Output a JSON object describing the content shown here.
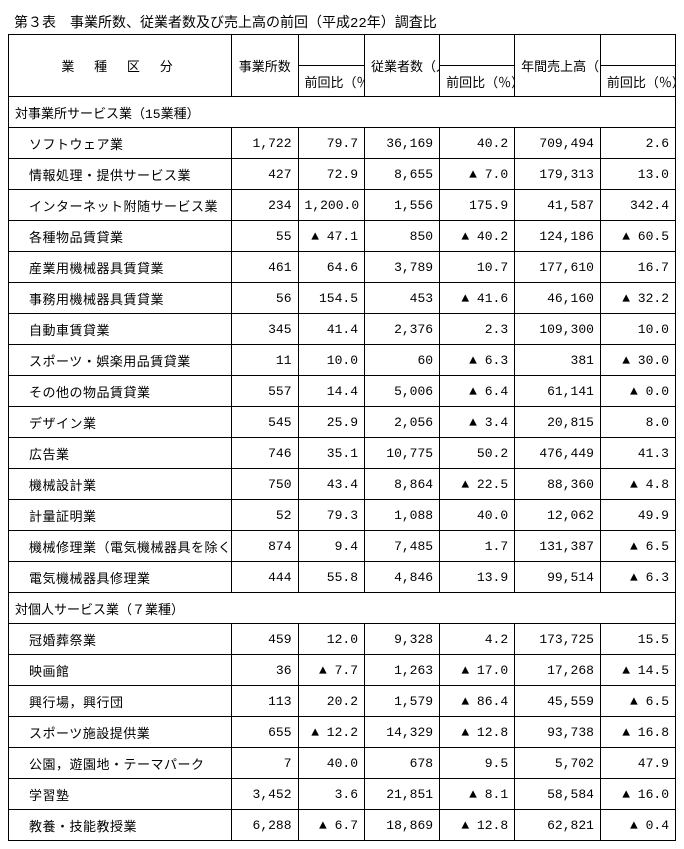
{
  "title": "第３表　事業所数、従業者数及び売上高の前回（平成22年）調査比",
  "header": {
    "category": "業 種 区 分",
    "est": "事業所数",
    "est_ratio": "前回比（％）",
    "emp": "従業者数（人）",
    "emp_ratio": "前回比（％）",
    "sales": "年間売上高（百万円）",
    "sales_ratio": "前回比（％）"
  },
  "sections": [
    {
      "label": "対事業所サービス業（15業種）",
      "rows": [
        {
          "cat": "ソフトウェア業",
          "est": "1,722",
          "est_r": "79.7",
          "emp": "36,169",
          "emp_r": "40.2",
          "sales": "709,494",
          "sales_r": "2.6"
        },
        {
          "cat": "情報処理・提供サービス業",
          "est": "427",
          "est_r": "72.9",
          "emp": "8,655",
          "emp_r": "▲ 7.0",
          "sales": "179,313",
          "sales_r": "13.0"
        },
        {
          "cat": "インターネット附随サービス業",
          "est": "234",
          "est_r": "1,200.0",
          "emp": "1,556",
          "emp_r": "175.9",
          "sales": "41,587",
          "sales_r": "342.4"
        },
        {
          "cat": "各種物品賃貸業",
          "est": "55",
          "est_r": "▲ 47.1",
          "emp": "850",
          "emp_r": "▲ 40.2",
          "sales": "124,186",
          "sales_r": "▲ 60.5"
        },
        {
          "cat": "産業用機械器具賃貸業",
          "est": "461",
          "est_r": "64.6",
          "emp": "3,789",
          "emp_r": "10.7",
          "sales": "177,610",
          "sales_r": "16.7"
        },
        {
          "cat": "事務用機械器具賃貸業",
          "est": "56",
          "est_r": "154.5",
          "emp": "453",
          "emp_r": "▲ 41.6",
          "sales": "46,160",
          "sales_r": "▲ 32.2"
        },
        {
          "cat": "自動車賃貸業",
          "est": "345",
          "est_r": "41.4",
          "emp": "2,376",
          "emp_r": "2.3",
          "sales": "109,300",
          "sales_r": "10.0"
        },
        {
          "cat": "スポーツ・娯楽用品賃貸業",
          "est": "11",
          "est_r": "10.0",
          "emp": "60",
          "emp_r": "▲ 6.3",
          "sales": "381",
          "sales_r": "▲ 30.0"
        },
        {
          "cat": "その他の物品賃貸業",
          "est": "557",
          "est_r": "14.4",
          "emp": "5,006",
          "emp_r": "▲ 6.4",
          "sales": "61,141",
          "sales_r": "▲ 0.0"
        },
        {
          "cat": "デザイン業",
          "est": "545",
          "est_r": "25.9",
          "emp": "2,056",
          "emp_r": "▲ 3.4",
          "sales": "20,815",
          "sales_r": "8.0"
        },
        {
          "cat": "広告業",
          "est": "746",
          "est_r": "35.1",
          "emp": "10,775",
          "emp_r": "50.2",
          "sales": "476,449",
          "sales_r": "41.3"
        },
        {
          "cat": "機械設計業",
          "est": "750",
          "est_r": "43.4",
          "emp": "8,864",
          "emp_r": "▲ 22.5",
          "sales": "88,360",
          "sales_r": "▲ 4.8"
        },
        {
          "cat": "計量証明業",
          "est": "52",
          "est_r": "79.3",
          "emp": "1,088",
          "emp_r": "40.0",
          "sales": "12,062",
          "sales_r": "49.9"
        },
        {
          "cat": "機械修理業（電気機械器具を除く）",
          "est": "874",
          "est_r": "9.4",
          "emp": "7,485",
          "emp_r": "1.7",
          "sales": "131,387",
          "sales_r": "▲ 6.5"
        },
        {
          "cat": "電気機械器具修理業",
          "est": "444",
          "est_r": "55.8",
          "emp": "4,846",
          "emp_r": "13.9",
          "sales": "99,514",
          "sales_r": "▲ 6.3"
        }
      ]
    },
    {
      "label": "対個人サービス業（７業種）",
      "rows": [
        {
          "cat": "冠婚葬祭業",
          "est": "459",
          "est_r": "12.0",
          "emp": "9,328",
          "emp_r": "4.2",
          "sales": "173,725",
          "sales_r": "15.5"
        },
        {
          "cat": "映画館",
          "est": "36",
          "est_r": "▲ 7.7",
          "emp": "1,263",
          "emp_r": "▲ 17.0",
          "sales": "17,268",
          "sales_r": "▲ 14.5"
        },
        {
          "cat": "興行場，興行団",
          "est": "113",
          "est_r": "20.2",
          "emp": "1,579",
          "emp_r": "▲ 86.4",
          "sales": "45,559",
          "sales_r": "▲ 6.5"
        },
        {
          "cat": "スポーツ施設提供業",
          "est": "655",
          "est_r": "▲ 12.2",
          "emp": "14,329",
          "emp_r": "▲ 12.8",
          "sales": "93,738",
          "sales_r": "▲ 16.8"
        },
        {
          "cat": "公園，遊園地・テーマパーク",
          "est": "7",
          "est_r": "40.0",
          "emp": "678",
          "emp_r": "9.5",
          "sales": "5,702",
          "sales_r": "47.9"
        },
        {
          "cat": "学習塾",
          "est": "3,452",
          "est_r": "3.6",
          "emp": "21,851",
          "emp_r": "▲ 8.1",
          "sales": "58,584",
          "sales_r": "▲ 16.0"
        },
        {
          "cat": "教養・技能教授業",
          "est": "6,288",
          "est_r": "▲ 6.7",
          "emp": "18,869",
          "emp_r": "▲ 12.8",
          "sales": "62,821",
          "sales_r": "▲ 0.4"
        }
      ]
    }
  ]
}
